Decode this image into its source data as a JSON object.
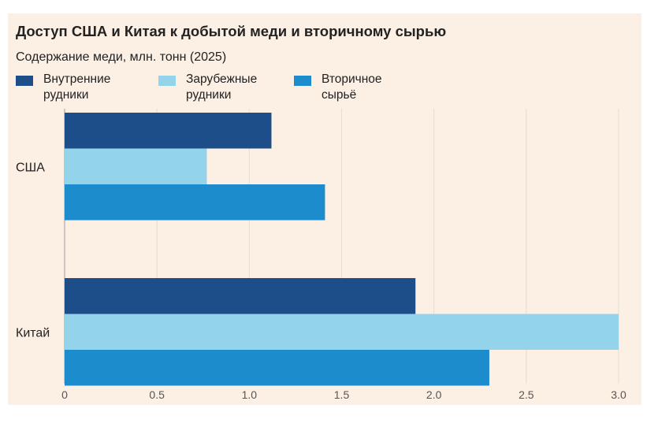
{
  "chart_data": {
    "type": "bar",
    "orientation": "horizontal",
    "title": "Доступ США и Китая к добытой меди и вторичному сырью",
    "subtitle": "Содержание меди, млн. тонн (2025)",
    "categories": [
      "США",
      "Китай"
    ],
    "series": [
      {
        "name": "Внутренние рудники",
        "color": "#1d4e89",
        "values": [
          1.12,
          1.9
        ]
      },
      {
        "name": "Зарубежные рудники",
        "color": "#94d4eb",
        "values": [
          0.77,
          3.0
        ]
      },
      {
        "name": "Вторичное сырьё",
        "color": "#1d8ccd",
        "values": [
          1.41,
          2.3
        ]
      }
    ],
    "xlim": [
      0,
      3.0
    ],
    "xticks": [
      "0",
      "0.5",
      "1.0",
      "1.5",
      "2.0",
      "2.5",
      "3.0"
    ],
    "xtick_values": [
      0,
      0.5,
      1.0,
      1.5,
      2.0,
      2.5,
      3.0
    ],
    "grid": "vertical",
    "legend_position": "top-left"
  }
}
